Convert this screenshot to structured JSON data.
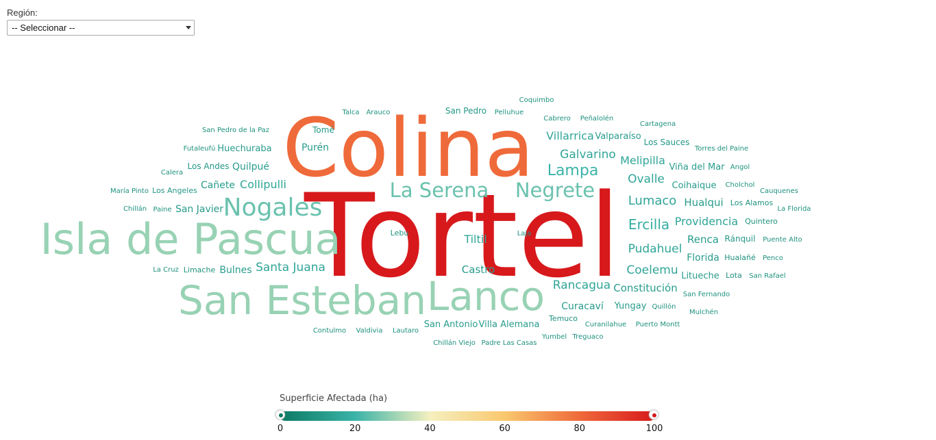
{
  "filter": {
    "label": "Región:",
    "selected": "-- Seleccionar --"
  },
  "legend": {
    "title": "Superficie Afectada (ha)",
    "min": 0,
    "max": 100,
    "ticks": [
      "0",
      "20",
      "40",
      "60",
      "80",
      "100"
    ],
    "colors": [
      "#0b7a63",
      "#3bb3a8",
      "#f5f0c0",
      "#f9c86e",
      "#ef6a3a",
      "#d7191c"
    ]
  },
  "chart_data": {
    "type": "wordcloud",
    "value_label": "Superficie Afectada (ha)",
    "words": [
      {
        "text": "Tortel",
        "value": 100
      },
      {
        "text": "Colina",
        "value": 80
      },
      {
        "text": "Isla de Pascua",
        "value": 30
      },
      {
        "text": "San Esteban",
        "value": 30
      },
      {
        "text": "Lanco",
        "value": 30
      },
      {
        "text": "Nogales",
        "value": 25
      },
      {
        "text": "La Serena",
        "value": 25
      },
      {
        "text": "Negrete",
        "value": 25
      },
      {
        "text": "Lampa",
        "value": 20
      },
      {
        "text": "Ercilla",
        "value": 18
      },
      {
        "text": "Collipulli",
        "value": 15
      },
      {
        "text": "Santa Juana",
        "value": 15
      },
      {
        "text": "Galvarino",
        "value": 15
      },
      {
        "text": "Villarrica",
        "value": 15
      },
      {
        "text": "Melipilla",
        "value": 15
      },
      {
        "text": "Ovalle",
        "value": 15
      },
      {
        "text": "Lumaco",
        "value": 15
      },
      {
        "text": "Pudahuel",
        "value": 15
      },
      {
        "text": "Coelemu",
        "value": 15
      },
      {
        "text": "Providencia",
        "value": 15
      },
      {
        "text": "Rancagua",
        "value": 15
      },
      {
        "text": "Tiltil",
        "value": 15
      },
      {
        "text": "Castro",
        "value": 12
      },
      {
        "text": "Purén",
        "value": 12
      },
      {
        "text": "Huechuraba",
        "value": 12
      },
      {
        "text": "Quilpué",
        "value": 12
      },
      {
        "text": "Cañete",
        "value": 12
      },
      {
        "text": "San Javier",
        "value": 12
      },
      {
        "text": "Bulnes",
        "value": 12
      },
      {
        "text": "Valparaíso",
        "value": 12
      },
      {
        "text": "Los Sauces",
        "value": 10
      },
      {
        "text": "Viña del Mar",
        "value": 12
      },
      {
        "text": "Coihaique",
        "value": 12
      },
      {
        "text": "Hualqui",
        "value": 12
      },
      {
        "text": "Renca",
        "value": 12
      },
      {
        "text": "Florida",
        "value": 12
      },
      {
        "text": "Litueche",
        "value": 12
      },
      {
        "text": "Constitución",
        "value": 12
      },
      {
        "text": "Curacaví",
        "value": 12
      },
      {
        "text": "Yungay",
        "value": 12
      },
      {
        "text": "San Antonio",
        "value": 12
      },
      {
        "text": "Villa Alemana",
        "value": 12
      },
      {
        "text": "Los Andes",
        "value": 10
      },
      {
        "text": "Los Angeles",
        "value": 10
      },
      {
        "text": "Tomé",
        "value": 10
      },
      {
        "text": "San Pedro",
        "value": 10
      },
      {
        "text": "Arauco",
        "value": 8
      },
      {
        "text": "Talca",
        "value": 8
      },
      {
        "text": "Pelluhue",
        "value": 8
      },
      {
        "text": "Coquimbo",
        "value": 8
      },
      {
        "text": "Cabrero",
        "value": 8
      },
      {
        "text": "Peñalolén",
        "value": 8
      },
      {
        "text": "Cartagena",
        "value": 8
      },
      {
        "text": "Torres del Paine",
        "value": 8
      },
      {
        "text": "Angol",
        "value": 8
      },
      {
        "text": "Cholchol",
        "value": 8
      },
      {
        "text": "Cauquenes",
        "value": 8
      },
      {
        "text": "Los Alamos",
        "value": 8
      },
      {
        "text": "La Florida",
        "value": 8
      },
      {
        "text": "Quintero",
        "value": 8
      },
      {
        "text": "Ránquil",
        "value": 10
      },
      {
        "text": "Puente Alto",
        "value": 8
      },
      {
        "text": "Hualañé",
        "value": 8
      },
      {
        "text": "Penco",
        "value": 8
      },
      {
        "text": "Lota",
        "value": 8
      },
      {
        "text": "San Rafael",
        "value": 8
      },
      {
        "text": "San Fernando",
        "value": 8
      },
      {
        "text": "Quillón",
        "value": 8
      },
      {
        "text": "Mulchén",
        "value": 8
      },
      {
        "text": "Puerto Montt",
        "value": 8
      },
      {
        "text": "Curanilahue",
        "value": 8
      },
      {
        "text": "Temuco",
        "value": 8
      },
      {
        "text": "Yumbel",
        "value": 8
      },
      {
        "text": "Treguaco",
        "value": 8
      },
      {
        "text": "Padre Las Casas",
        "value": 8
      },
      {
        "text": "Chillán Viejo",
        "value": 8
      },
      {
        "text": "Lautaro",
        "value": 8
      },
      {
        "text": "Valdivia",
        "value": 8
      },
      {
        "text": "Contulmo",
        "value": 8
      },
      {
        "text": "Lebu",
        "value": 8
      },
      {
        "text": "Laja",
        "value": 8
      },
      {
        "text": "La Cruz",
        "value": 8
      },
      {
        "text": "Limache",
        "value": 8
      },
      {
        "text": "Chillán",
        "value": 8
      },
      {
        "text": "Paine",
        "value": 8
      },
      {
        "text": "María Pinto",
        "value": 8
      },
      {
        "text": "Calera",
        "value": 8
      },
      {
        "text": "Futaleufú",
        "value": 8
      },
      {
        "text": "San Pedro de la Paz",
        "value": 8
      }
    ]
  }
}
